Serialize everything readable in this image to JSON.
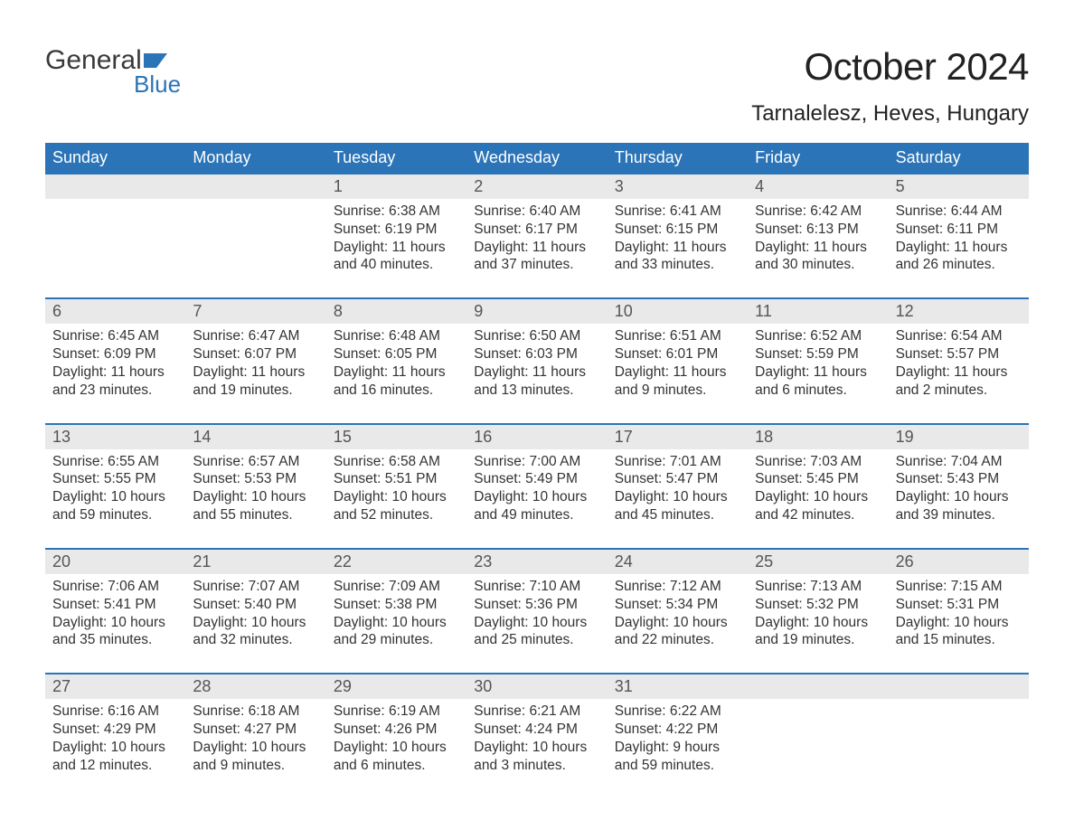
{
  "brand": {
    "word1": "General",
    "word2": "Blue",
    "logo_color": "#2b74b8",
    "text_color": "#3a3a3a"
  },
  "title": "October 2024",
  "subtitle": "Tarnalelesz, Heves, Hungary",
  "colors": {
    "header_bg": "#2b74b8",
    "header_text": "#ffffff",
    "daynum_bg": "#e9e9e9",
    "daynum_text": "#555555",
    "border": "#2b74b8",
    "body_text": "#333333",
    "page_bg": "#ffffff"
  },
  "day_names": [
    "Sunday",
    "Monday",
    "Tuesday",
    "Wednesday",
    "Thursday",
    "Friday",
    "Saturday"
  ],
  "weeks": [
    [
      {
        "num": "",
        "sunrise": "",
        "sunset": "",
        "daylight": ""
      },
      {
        "num": "",
        "sunrise": "",
        "sunset": "",
        "daylight": ""
      },
      {
        "num": "1",
        "sunrise": "Sunrise: 6:38 AM",
        "sunset": "Sunset: 6:19 PM",
        "daylight": "Daylight: 11 hours and 40 minutes."
      },
      {
        "num": "2",
        "sunrise": "Sunrise: 6:40 AM",
        "sunset": "Sunset: 6:17 PM",
        "daylight": "Daylight: 11 hours and 37 minutes."
      },
      {
        "num": "3",
        "sunrise": "Sunrise: 6:41 AM",
        "sunset": "Sunset: 6:15 PM",
        "daylight": "Daylight: 11 hours and 33 minutes."
      },
      {
        "num": "4",
        "sunrise": "Sunrise: 6:42 AM",
        "sunset": "Sunset: 6:13 PM",
        "daylight": "Daylight: 11 hours and 30 minutes."
      },
      {
        "num": "5",
        "sunrise": "Sunrise: 6:44 AM",
        "sunset": "Sunset: 6:11 PM",
        "daylight": "Daylight: 11 hours and 26 minutes."
      }
    ],
    [
      {
        "num": "6",
        "sunrise": "Sunrise: 6:45 AM",
        "sunset": "Sunset: 6:09 PM",
        "daylight": "Daylight: 11 hours and 23 minutes."
      },
      {
        "num": "7",
        "sunrise": "Sunrise: 6:47 AM",
        "sunset": "Sunset: 6:07 PM",
        "daylight": "Daylight: 11 hours and 19 minutes."
      },
      {
        "num": "8",
        "sunrise": "Sunrise: 6:48 AM",
        "sunset": "Sunset: 6:05 PM",
        "daylight": "Daylight: 11 hours and 16 minutes."
      },
      {
        "num": "9",
        "sunrise": "Sunrise: 6:50 AM",
        "sunset": "Sunset: 6:03 PM",
        "daylight": "Daylight: 11 hours and 13 minutes."
      },
      {
        "num": "10",
        "sunrise": "Sunrise: 6:51 AM",
        "sunset": "Sunset: 6:01 PM",
        "daylight": "Daylight: 11 hours and 9 minutes."
      },
      {
        "num": "11",
        "sunrise": "Sunrise: 6:52 AM",
        "sunset": "Sunset: 5:59 PM",
        "daylight": "Daylight: 11 hours and 6 minutes."
      },
      {
        "num": "12",
        "sunrise": "Sunrise: 6:54 AM",
        "sunset": "Sunset: 5:57 PM",
        "daylight": "Daylight: 11 hours and 2 minutes."
      }
    ],
    [
      {
        "num": "13",
        "sunrise": "Sunrise: 6:55 AM",
        "sunset": "Sunset: 5:55 PM",
        "daylight": "Daylight: 10 hours and 59 minutes."
      },
      {
        "num": "14",
        "sunrise": "Sunrise: 6:57 AM",
        "sunset": "Sunset: 5:53 PM",
        "daylight": "Daylight: 10 hours and 55 minutes."
      },
      {
        "num": "15",
        "sunrise": "Sunrise: 6:58 AM",
        "sunset": "Sunset: 5:51 PM",
        "daylight": "Daylight: 10 hours and 52 minutes."
      },
      {
        "num": "16",
        "sunrise": "Sunrise: 7:00 AM",
        "sunset": "Sunset: 5:49 PM",
        "daylight": "Daylight: 10 hours and 49 minutes."
      },
      {
        "num": "17",
        "sunrise": "Sunrise: 7:01 AM",
        "sunset": "Sunset: 5:47 PM",
        "daylight": "Daylight: 10 hours and 45 minutes."
      },
      {
        "num": "18",
        "sunrise": "Sunrise: 7:03 AM",
        "sunset": "Sunset: 5:45 PM",
        "daylight": "Daylight: 10 hours and 42 minutes."
      },
      {
        "num": "19",
        "sunrise": "Sunrise: 7:04 AM",
        "sunset": "Sunset: 5:43 PM",
        "daylight": "Daylight: 10 hours and 39 minutes."
      }
    ],
    [
      {
        "num": "20",
        "sunrise": "Sunrise: 7:06 AM",
        "sunset": "Sunset: 5:41 PM",
        "daylight": "Daylight: 10 hours and 35 minutes."
      },
      {
        "num": "21",
        "sunrise": "Sunrise: 7:07 AM",
        "sunset": "Sunset: 5:40 PM",
        "daylight": "Daylight: 10 hours and 32 minutes."
      },
      {
        "num": "22",
        "sunrise": "Sunrise: 7:09 AM",
        "sunset": "Sunset: 5:38 PM",
        "daylight": "Daylight: 10 hours and 29 minutes."
      },
      {
        "num": "23",
        "sunrise": "Sunrise: 7:10 AM",
        "sunset": "Sunset: 5:36 PM",
        "daylight": "Daylight: 10 hours and 25 minutes."
      },
      {
        "num": "24",
        "sunrise": "Sunrise: 7:12 AM",
        "sunset": "Sunset: 5:34 PM",
        "daylight": "Daylight: 10 hours and 22 minutes."
      },
      {
        "num": "25",
        "sunrise": "Sunrise: 7:13 AM",
        "sunset": "Sunset: 5:32 PM",
        "daylight": "Daylight: 10 hours and 19 minutes."
      },
      {
        "num": "26",
        "sunrise": "Sunrise: 7:15 AM",
        "sunset": "Sunset: 5:31 PM",
        "daylight": "Daylight: 10 hours and 15 minutes."
      }
    ],
    [
      {
        "num": "27",
        "sunrise": "Sunrise: 6:16 AM",
        "sunset": "Sunset: 4:29 PM",
        "daylight": "Daylight: 10 hours and 12 minutes."
      },
      {
        "num": "28",
        "sunrise": "Sunrise: 6:18 AM",
        "sunset": "Sunset: 4:27 PM",
        "daylight": "Daylight: 10 hours and 9 minutes."
      },
      {
        "num": "29",
        "sunrise": "Sunrise: 6:19 AM",
        "sunset": "Sunset: 4:26 PM",
        "daylight": "Daylight: 10 hours and 6 minutes."
      },
      {
        "num": "30",
        "sunrise": "Sunrise: 6:21 AM",
        "sunset": "Sunset: 4:24 PM",
        "daylight": "Daylight: 10 hours and 3 minutes."
      },
      {
        "num": "31",
        "sunrise": "Sunrise: 6:22 AM",
        "sunset": "Sunset: 4:22 PM",
        "daylight": "Daylight: 9 hours and 59 minutes."
      },
      {
        "num": "",
        "sunrise": "",
        "sunset": "",
        "daylight": ""
      },
      {
        "num": "",
        "sunrise": "",
        "sunset": "",
        "daylight": ""
      }
    ]
  ]
}
